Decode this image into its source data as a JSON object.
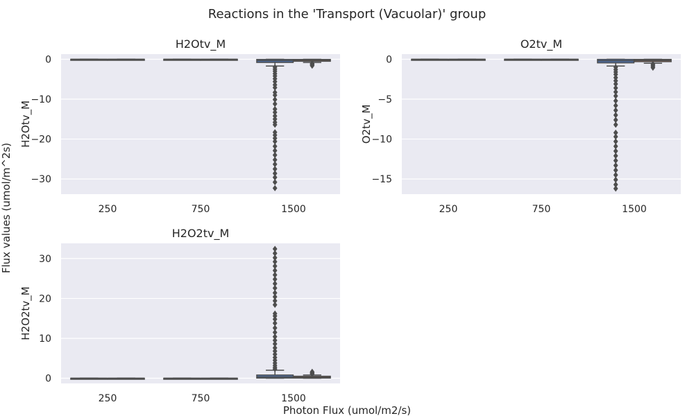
{
  "figure": {
    "title": "Reactions in the 'Transport (Vacuolar)' group",
    "xlabel": "Photon Flux (umol/m2/s)",
    "ylabel": "Flux values (umol/m^2s)"
  },
  "style": {
    "panel_bg": "#eaeaf2",
    "grid": "#ffffff",
    "box_fill": "#4c72b0",
    "box_fill_alt": "#dd8452",
    "line": "#4d4d4d",
    "text": "#262626"
  },
  "chart_data": [
    {
      "type": "box",
      "title": "H2Otv_M",
      "ylabel": "H2Otv_M",
      "categories": [
        "250",
        "750",
        "1500"
      ],
      "ylim": [
        -33.8,
        1.3
      ],
      "yticks": [
        0,
        -10,
        -20,
        -30
      ],
      "grid": true,
      "series": [
        {
          "values": [
            {
              "category": "250",
              "q1": 0,
              "median": 0,
              "q3": 0,
              "whisker_low": 0,
              "whisker_high": 0,
              "outliers": []
            },
            {
              "category": "750",
              "q1": 0,
              "median": 0,
              "q3": 0,
              "whisker_low": 0,
              "whisker_high": 0,
              "outliers": []
            },
            {
              "category": "1500",
              "q1": -0.8,
              "median": -0.35,
              "q3": -0.05,
              "whisker_low": -1.7,
              "whisker_high": 0,
              "outliers": [
                -2.0,
                -2.5,
                -3.0,
                -3.6,
                -4.2,
                -4.9,
                -5.6,
                -6.4,
                -7.1,
                -8.3,
                -9.0,
                -10.1,
                -11.2,
                -12.5,
                -13.3,
                -14.2,
                -15.0,
                -15.8,
                -16.4,
                -18.3,
                -19.0,
                -19.8,
                -20.6,
                -21.8,
                -22.9,
                -24.0,
                -25.2,
                -26.3,
                -27.5,
                -28.6,
                -29.6,
                -30.8,
                -32.3
              ]
            }
          ]
        },
        {
          "values": [
            {
              "category": "250",
              "q1": 0,
              "median": 0,
              "q3": 0,
              "whisker_low": 0,
              "whisker_high": 0,
              "outliers": []
            },
            {
              "category": "750",
              "q1": 0,
              "median": 0,
              "q3": 0,
              "whisker_low": 0,
              "whisker_high": 0,
              "outliers": []
            },
            {
              "category": "1500",
              "q1": -0.5,
              "median": -0.25,
              "q3": -0.05,
              "whisker_low": -0.8,
              "whisker_high": 0,
              "outliers": [
                -1.0,
                -1.2,
                -1.4,
                -1.6
              ]
            }
          ]
        }
      ]
    },
    {
      "type": "box",
      "title": "O2tv_M",
      "ylabel": "O2tv_M",
      "categories": [
        "250",
        "750",
        "1500"
      ],
      "ylim": [
        -16.9,
        0.65
      ],
      "yticks": [
        0,
        -5,
        -10,
        -15
      ],
      "grid": true,
      "series": [
        {
          "values": [
            {
              "category": "250",
              "q1": 0,
              "median": 0,
              "q3": 0,
              "whisker_low": 0,
              "whisker_high": 0,
              "outliers": []
            },
            {
              "category": "750",
              "q1": 0,
              "median": 0,
              "q3": 0,
              "whisker_low": 0,
              "whisker_high": 0,
              "outliers": []
            },
            {
              "category": "1500",
              "q1": -0.45,
              "median": -0.2,
              "q3": -0.02,
              "whisker_low": -0.85,
              "whisker_high": 0,
              "outliers": [
                -1.0,
                -1.3,
                -1.6,
                -1.9,
                -2.3,
                -2.7,
                -3.1,
                -3.6,
                -4.1,
                -4.6,
                -5.2,
                -5.8,
                -6.4,
                -7.0,
                -7.6,
                -8.2,
                -9.2,
                -9.7,
                -10.3,
                -10.9,
                -11.5,
                -12.1,
                -12.7,
                -13.3,
                -13.9,
                -14.5,
                -15.1,
                -15.7,
                -16.2
              ]
            }
          ]
        },
        {
          "values": [
            {
              "category": "250",
              "q1": 0,
              "median": 0,
              "q3": 0,
              "whisker_low": 0,
              "whisker_high": 0,
              "outliers": []
            },
            {
              "category": "750",
              "q1": 0,
              "median": 0,
              "q3": 0,
              "whisker_low": 0,
              "whisker_high": 0,
              "outliers": []
            },
            {
              "category": "1500",
              "q1": -0.3,
              "median": -0.15,
              "q3": -0.02,
              "whisker_low": -0.5,
              "whisker_high": 0,
              "outliers": [
                -0.6,
                -0.75,
                -0.9,
                -1.05
              ]
            }
          ]
        }
      ]
    },
    {
      "type": "box",
      "title": "H2O2tv_M",
      "ylabel": "H2O2tv_M",
      "categories": [
        "250",
        "750",
        "1500"
      ],
      "ylim": [
        -1.3,
        33.8
      ],
      "yticks": [
        0,
        10,
        20,
        30
      ],
      "grid": true,
      "series": [
        {
          "values": [
            {
              "category": "250",
              "q1": 0,
              "median": 0,
              "q3": 0,
              "whisker_low": 0,
              "whisker_high": 0,
              "outliers": []
            },
            {
              "category": "750",
              "q1": 0,
              "median": 0,
              "q3": 0,
              "whisker_low": 0,
              "whisker_high": 0,
              "outliers": []
            },
            {
              "category": "1500",
              "q1": 0.05,
              "median": 0.35,
              "q3": 0.8,
              "whisker_low": 0,
              "whisker_high": 2.0,
              "outliers": [
                2.3,
                2.7,
                3.2,
                3.8,
                4.5,
                5.2,
                6.0,
                6.8,
                7.6,
                8.6,
                9.5,
                10.4,
                11.5,
                12.6,
                13.8,
                14.8,
                15.6,
                16.2,
                18.4,
                19.4,
                20.4,
                21.4,
                22.6,
                23.7,
                24.8,
                25.9,
                27.0,
                28.1,
                29.2,
                30.2,
                31.3,
                32.4
              ]
            }
          ]
        },
        {
          "values": [
            {
              "category": "250",
              "q1": 0,
              "median": 0,
              "q3": 0,
              "whisker_low": 0,
              "whisker_high": 0,
              "outliers": []
            },
            {
              "category": "750",
              "q1": 0,
              "median": 0,
              "q3": 0,
              "whisker_low": 0,
              "whisker_high": 0,
              "outliers": []
            },
            {
              "category": "1500",
              "q1": 0.05,
              "median": 0.25,
              "q3": 0.5,
              "whisker_low": 0,
              "whisker_high": 0.8,
              "outliers": [
                1.0,
                1.2,
                1.4,
                1.6
              ]
            }
          ]
        }
      ]
    }
  ]
}
